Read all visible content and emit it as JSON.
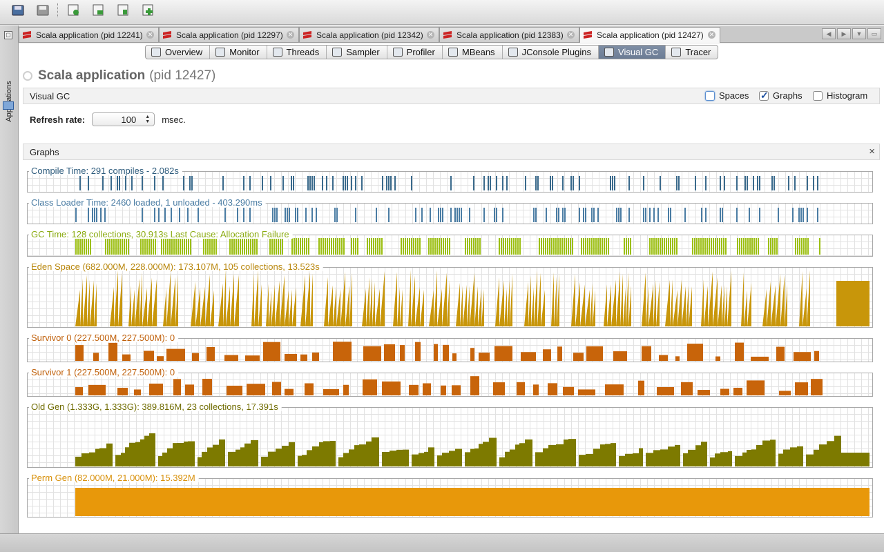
{
  "doc_tabs": [
    {
      "label": "Scala application (pid 12241)"
    },
    {
      "label": "Scala application (pid 12297)"
    },
    {
      "label": "Scala application (pid 12342)"
    },
    {
      "label": "Scala application (pid 12383)"
    },
    {
      "label": "Scala application (pid 12427)",
      "active": true
    }
  ],
  "sidebar": {
    "label": "Applications"
  },
  "view_tabs": [
    {
      "label": "Overview",
      "icon": "overview-icon"
    },
    {
      "label": "Monitor",
      "icon": "monitor-icon"
    },
    {
      "label": "Threads",
      "icon": "threads-icon"
    },
    {
      "label": "Sampler",
      "icon": "sampler-icon"
    },
    {
      "label": "Profiler",
      "icon": "profiler-icon"
    },
    {
      "label": "MBeans",
      "icon": "mbeans-icon"
    },
    {
      "label": "JConsole Plugins",
      "icon": "jconsole-icon"
    },
    {
      "label": "Visual GC",
      "icon": "visualgc-icon",
      "active": true
    },
    {
      "label": "Tracer",
      "icon": "tracer-icon"
    }
  ],
  "app": {
    "name": "Scala application",
    "pid": "(pid 12427)"
  },
  "visual_gc": {
    "label": "Visual GC"
  },
  "options": {
    "spaces": "Spaces",
    "graphs": "Graphs",
    "histogram": "Histogram",
    "spaces_checked": false,
    "graphs_checked": true,
    "histogram_checked": false
  },
  "refresh": {
    "label": "Refresh rate:",
    "value": "100",
    "unit": "msec."
  },
  "graphs_panel": {
    "label": "Graphs",
    "close": "×"
  },
  "graphs": [
    {
      "key": "compile",
      "label": "Compile Time: 291 compiles - 2.082s",
      "color": "#3a6a8c",
      "type": "spikes"
    },
    {
      "key": "classloader",
      "label": "Class Loader Time: 2460 loaded, 1 unloaded - 403.290ms",
      "color": "#4a7ca3",
      "type": "spikes"
    },
    {
      "key": "gc",
      "label": "GC Time: 128 collections, 30.913s  Last Cause: Allocation Failure",
      "color": "#9cbf12",
      "type": "blocks"
    },
    {
      "key": "eden",
      "label": "Eden Space (682.000M, 228.000M): 173.107M, 105 collections, 13.523s",
      "color": "#c8960a",
      "type": "saw"
    },
    {
      "key": "survivor0",
      "label": "Survivor 0 (227.500M, 227.500M): 0",
      "color": "#c8640a",
      "type": "steps"
    },
    {
      "key": "survivor1",
      "label": "Survivor 1 (227.500M, 227.500M): 0",
      "color": "#c8640a",
      "type": "steps"
    },
    {
      "key": "oldgen",
      "label": "Old Gen (1.333G, 1.333G): 389.816M, 23 collections, 17.391s",
      "color": "#7d7a00",
      "type": "stairs"
    },
    {
      "key": "permgen",
      "label": "Perm Gen (82.000M, 21.000M): 15.392M",
      "color": "#e8980a",
      "type": "flat"
    }
  ],
  "colors": {
    "label_compile": "#2d5b7c",
    "label_gc": "#8aaa10",
    "label_eden": "#b8860b",
    "label_surv": "#c0600a",
    "label_old": "#6f6b00",
    "label_perm": "#d8900a"
  }
}
